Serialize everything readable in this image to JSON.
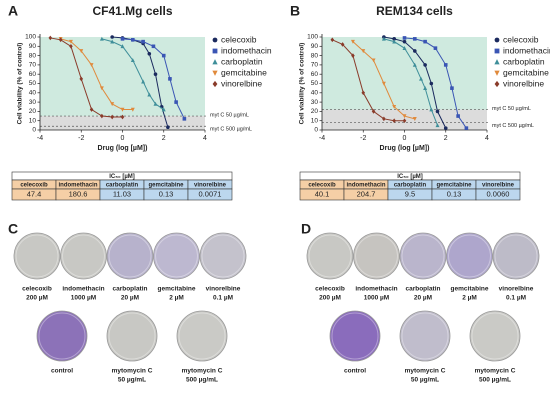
{
  "chart_data": [
    {
      "type": "line",
      "panel": "A",
      "title": "CF41.Mg cells",
      "x_label": "Drug (log [µM])",
      "y_label": "Cell viability (% of control)",
      "xlim": [
        -4,
        4
      ],
      "xticks": [
        -4,
        -2,
        0,
        2,
        4
      ],
      "ylim": [
        0,
        100
      ],
      "yticks": [
        0,
        10,
        20,
        30,
        40,
        50,
        60,
        70,
        80,
        90,
        100
      ],
      "reference_lines": [
        {
          "label": "myt C 50 µg/mL",
          "value": 15
        },
        {
          "label": "myt C 500 µg/mL",
          "value": 4
        }
      ],
      "series": [
        {
          "name": "celecoxib",
          "color": "#1b2a5e",
          "marker": "circle",
          "x": [
            -0.5,
            0,
            0.5,
            1,
            1.3,
            1.6,
            1.9,
            2.2
          ],
          "values": [
            100,
            99,
            97,
            93,
            82,
            60,
            25,
            3
          ]
        },
        {
          "name": "indomethacin",
          "color": "#3a55b4",
          "marker": "square",
          "x": [
            0,
            0.5,
            1,
            1.5,
            2,
            2.3,
            2.6,
            3
          ],
          "values": [
            98,
            97,
            95,
            90,
            80,
            55,
            30,
            12
          ]
        },
        {
          "name": "carboplatin",
          "color": "#3f8f9a",
          "marker": "triangle",
          "x": [
            -1,
            -0.5,
            0,
            0.5,
            1,
            1.3,
            1.6,
            2
          ],
          "values": [
            98,
            95,
            90,
            75,
            52,
            38,
            28,
            22
          ]
        },
        {
          "name": "gemcitabine",
          "color": "#e08a3c",
          "marker": "triangle-down",
          "x": [
            -3,
            -2.5,
            -2,
            -1.5,
            -1,
            -0.5,
            0,
            0.5
          ],
          "values": [
            98,
            95,
            85,
            70,
            45,
            28,
            22,
            22
          ]
        },
        {
          "name": "vinorelbine",
          "color": "#8a3b2a",
          "marker": "diamond",
          "x": [
            -3.5,
            -3,
            -2.5,
            -2,
            -1.5,
            -1,
            -0.5,
            0
          ],
          "values": [
            99,
            97,
            90,
            55,
            22,
            15,
            14,
            14
          ]
        }
      ]
    },
    {
      "type": "line",
      "panel": "B",
      "title": "REM134 cells",
      "x_label": "Drug (log [µM])",
      "y_label": "Cell viability (% of control)",
      "xlim": [
        -4,
        4
      ],
      "xticks": [
        -4,
        -2,
        0,
        2,
        4
      ],
      "ylim": [
        0,
        100
      ],
      "yticks": [
        0,
        10,
        20,
        30,
        40,
        50,
        60,
        70,
        80,
        90,
        100
      ],
      "reference_lines": [
        {
          "label": "myt C 50 µg/mL",
          "value": 22
        },
        {
          "label": "myt C 500 µg/mL",
          "value": 8
        }
      ],
      "series": [
        {
          "name": "celecoxib",
          "color": "#1b2a5e",
          "marker": "circle",
          "x": [
            -1,
            -0.5,
            0,
            0.5,
            1,
            1.3,
            1.6,
            2
          ],
          "values": [
            100,
            98,
            95,
            85,
            70,
            50,
            20,
            2
          ]
        },
        {
          "name": "indomethacin",
          "color": "#3a55b4",
          "marker": "square",
          "x": [
            0,
            0.5,
            1,
            1.5,
            2,
            2.3,
            2.6,
            3
          ],
          "values": [
            99,
            98,
            95,
            88,
            70,
            45,
            15,
            2
          ]
        },
        {
          "name": "carboplatin",
          "color": "#3f8f9a",
          "marker": "triangle",
          "x": [
            -1,
            -0.5,
            0,
            0.5,
            0.8,
            1,
            1.3,
            1.6
          ],
          "values": [
            98,
            95,
            88,
            70,
            55,
            45,
            22,
            5
          ]
        },
        {
          "name": "gemcitabine",
          "color": "#e08a3c",
          "marker": "triangle-down",
          "x": [
            -2.5,
            -2,
            -1.5,
            -1,
            -0.5,
            0,
            0.5
          ],
          "values": [
            95,
            85,
            75,
            50,
            25,
            15,
            12
          ]
        },
        {
          "name": "vinorelbine",
          "color": "#8a3b2a",
          "marker": "diamond",
          "x": [
            -3.5,
            -3,
            -2.5,
            -2,
            -1.5,
            -1,
            -0.5,
            0
          ],
          "values": [
            97,
            92,
            80,
            40,
            20,
            12,
            10,
            10
          ]
        }
      ]
    }
  ],
  "tables": [
    {
      "header": "IC₅₀ [µM]",
      "columns": [
        "celecoxib",
        "indomethacin",
        "carboplatin",
        "gemcitabine",
        "vinorelbine"
      ],
      "values": [
        47.4,
        180.6,
        11.03,
        0.13,
        0.0071
      ],
      "colors": [
        "#f5cfa6",
        "#f5cfa6",
        "#bcd7ee",
        "#bcd7ee",
        "#bcd7ee"
      ]
    },
    {
      "header": "IC₅₀ [µM]",
      "columns": [
        "celecoxib",
        "indomethacin",
        "carboplatin",
        "gemcitabine",
        "vinorelbine"
      ],
      "values": [
        40.1,
        204.7,
        9.5,
        0.13,
        "0.0060"
      ],
      "colors": [
        "#f5cfa6",
        "#f5cfa6",
        "#bcd7ee",
        "#bcd7ee",
        "#bcd7ee"
      ]
    }
  ],
  "plate_panels": [
    {
      "panel": "C",
      "plates": [
        {
          "name": "celecoxib",
          "dose": "200 µM",
          "color": "#c8c8c4"
        },
        {
          "name": "indomethacin",
          "dose": "1000 µM",
          "color": "#c8c8c4"
        },
        {
          "name": "carboplatin",
          "dose": "20 µM",
          "color": "#b7b2cc"
        },
        {
          "name": "gemcitabine",
          "dose": "2 µM",
          "color": "#bdb8d0"
        },
        {
          "name": "vinorelbine",
          "dose": "0.1 µM",
          "color": "#c4c2cc"
        },
        {
          "name": "control",
          "color": "#8c72b8"
        },
        {
          "name": "mytomycin C",
          "dose": "50 µg/mL",
          "color": "#c8c8c4"
        },
        {
          "name": "mytomycin C",
          "dose": "500 µg/mL",
          "color": "#cacac6"
        }
      ]
    },
    {
      "panel": "D",
      "plates": [
        {
          "name": "celecoxib",
          "dose": "200 µM",
          "color": "#c8c8c4"
        },
        {
          "name": "indomethacin",
          "dose": "1000 µM",
          "color": "#c6c4c0"
        },
        {
          "name": "carboplatin",
          "dose": "20 µM",
          "color": "#bab5cc"
        },
        {
          "name": "gemcitabine",
          "dose": "2 µM",
          "color": "#aea6cc"
        },
        {
          "name": "vinorelbine",
          "dose": "0.1 µM",
          "color": "#bdbbc8"
        },
        {
          "name": "control",
          "color": "#8a6cbc"
        },
        {
          "name": "mytomycin C",
          "dose": "50 µg/mL",
          "color": "#c0bdcc"
        },
        {
          "name": "mytomycin C",
          "dose": "500 µg/mL",
          "color": "#cacac6"
        }
      ]
    }
  ]
}
